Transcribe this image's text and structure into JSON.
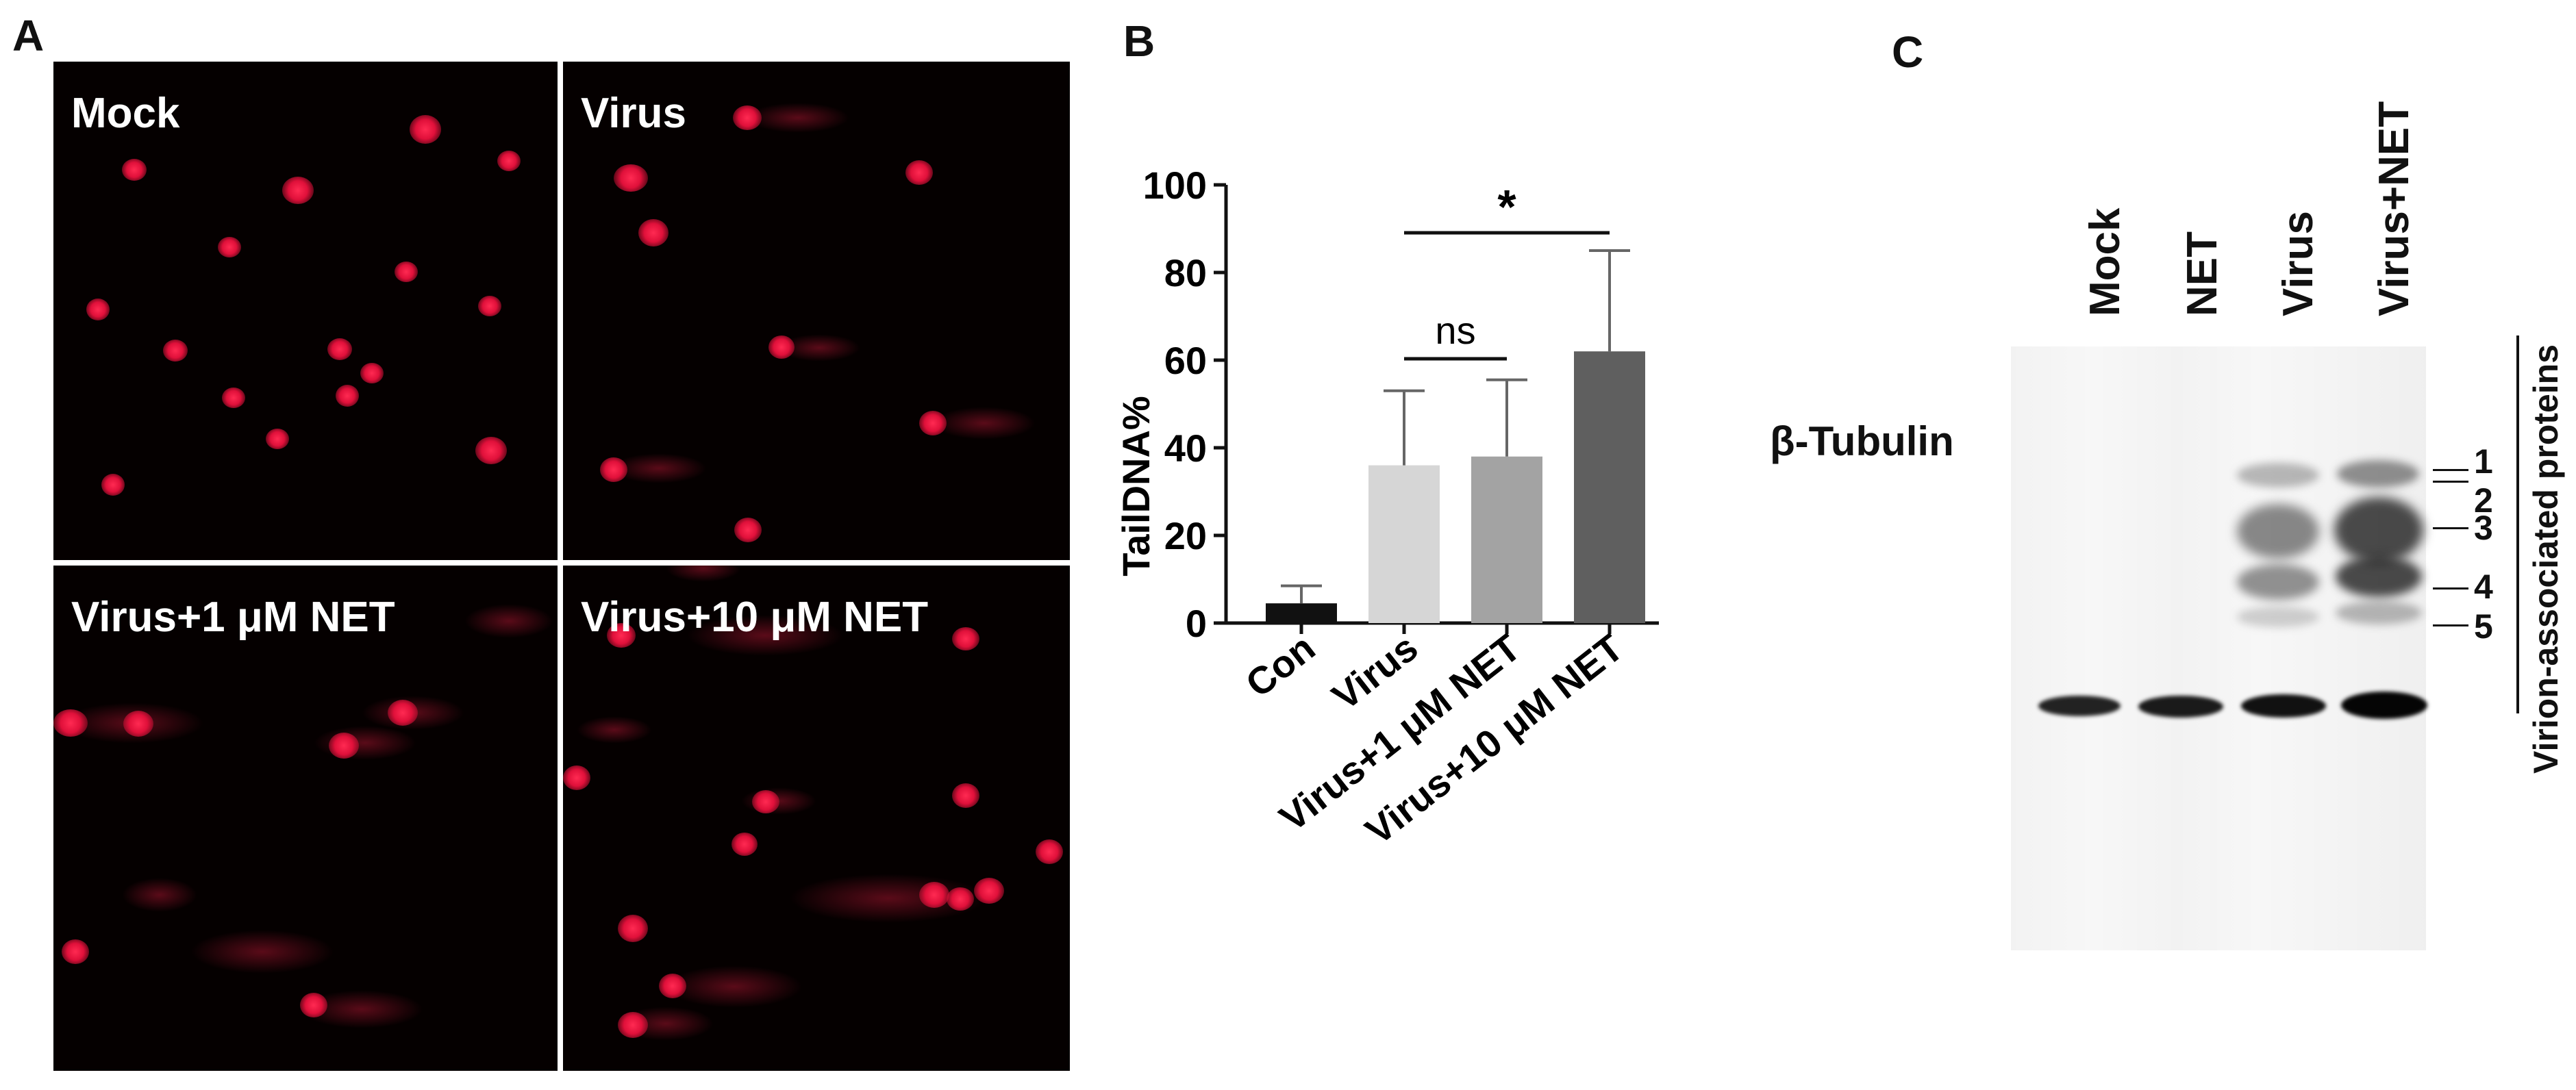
{
  "panels": {
    "a": "A",
    "b": "B",
    "c": "C"
  },
  "panel_a": {
    "images": [
      {
        "label": "Mock"
      },
      {
        "label": "Virus"
      },
      {
        "label": "Virus+1 μM NET"
      },
      {
        "label": "Virus+10 μM NET"
      }
    ]
  },
  "chart_data": {
    "type": "bar",
    "categories": [
      "Con",
      "Virus",
      "Virus+1 μM NET",
      "Virus+10 μM NET"
    ],
    "values": [
      4.5,
      36,
      38,
      62
    ],
    "errors": [
      4,
      17,
      17.5,
      23
    ],
    "bar_colors": [
      "#111111",
      "#d6d6d6",
      "#a3a3a3",
      "#5f5f5f"
    ],
    "ylabel": "TailDNA%",
    "ylim": [
      0,
      100
    ],
    "yticks": [
      0,
      20,
      40,
      60,
      80,
      100
    ],
    "significance": [
      {
        "from": 1,
        "to": 3,
        "label": "*"
      },
      {
        "from": 1,
        "to": 2,
        "label": "ns"
      }
    ]
  },
  "panel_c": {
    "lanes": [
      "Mock",
      "NET",
      "Virus",
      "Virus+NET"
    ],
    "band_label": "β-Tubulin",
    "bracket_label": "Virion-associated proteins",
    "band_numbers": [
      "1",
      "2",
      "3",
      "4",
      "5"
    ]
  }
}
